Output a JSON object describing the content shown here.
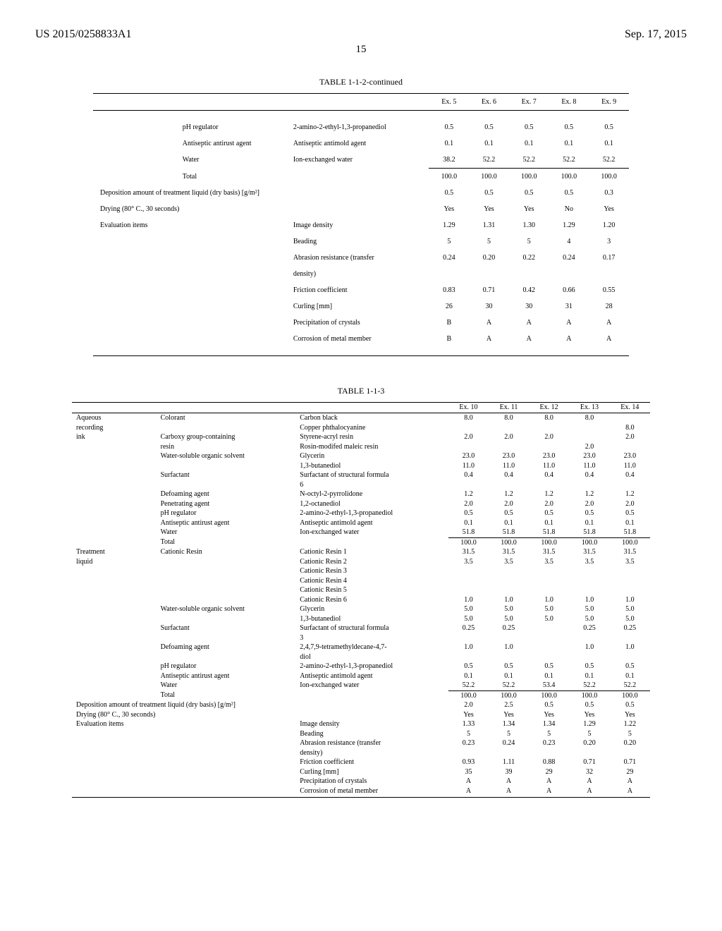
{
  "header": {
    "pub_number": "US 2015/0258833A1",
    "date": "Sep. 17, 2015",
    "page": "15"
  },
  "table1": {
    "title": "TABLE 1-1-2-continued",
    "head": [
      "Ex. 5",
      "Ex. 6",
      "Ex. 7",
      "Ex. 8",
      "Ex. 9"
    ],
    "top_rows": [
      {
        "c1": "",
        "c2": "pH regulator",
        "c3": "2-amino-2-ethyl-1,3-propanediol",
        "v": [
          "0.5",
          "0.5",
          "0.5",
          "0.5",
          "0.5"
        ]
      },
      {
        "c1": "",
        "c2": "Antiseptic antirust agent",
        "c3": "Antiseptic antimold agent",
        "v": [
          "0.1",
          "0.1",
          "0.1",
          "0.1",
          "0.1"
        ]
      },
      {
        "c1": "",
        "c2": "Water",
        "c3": "Ion-exchanged water",
        "v": [
          "38.2",
          "52.2",
          "52.2",
          "52.2",
          "52.2"
        ]
      }
    ],
    "mid_rows": [
      {
        "c1": "",
        "c2": "Total",
        "c3": "",
        "v": [
          "100.0",
          "100.0",
          "100.0",
          "100.0",
          "100.0"
        ]
      },
      {
        "span": "Deposition amount of treatment liquid (dry basis) [g/m²]",
        "v": [
          "0.5",
          "0.5",
          "0.5",
          "0.5",
          "0.3"
        ]
      },
      {
        "span": "Drying (80° C., 30 seconds)",
        "v": [
          "Yes",
          "Yes",
          "Yes",
          "No",
          "Yes"
        ]
      },
      {
        "c1": "Evaluation items",
        "c2": "",
        "c3": "Image density",
        "v": [
          "1.29",
          "1.31",
          "1.30",
          "1.29",
          "1.20"
        ]
      },
      {
        "c1": "",
        "c2": "",
        "c3": "Beading",
        "v": [
          "5",
          "5",
          "5",
          "4",
          "3"
        ]
      },
      {
        "c1": "",
        "c2": "",
        "c3": "Abrasion resistance (transfer",
        "v": [
          "0.24",
          "0.20",
          "0.22",
          "0.24",
          "0.17"
        ]
      },
      {
        "c1": "",
        "c2": "",
        "c3": "density)",
        "v": [
          "",
          "",
          "",
          "",
          ""
        ]
      },
      {
        "c1": "",
        "c2": "",
        "c3": "Friction coefficient",
        "v": [
          "0.83",
          "0.71",
          "0.42",
          "0.66",
          "0.55"
        ]
      },
      {
        "c1": "",
        "c2": "",
        "c3": "Curling [mm]",
        "v": [
          "26",
          "30",
          "30",
          "31",
          "28"
        ]
      },
      {
        "c1": "",
        "c2": "",
        "c3": "Precipitation of crystals",
        "v": [
          "B",
          "A",
          "A",
          "A",
          "A"
        ]
      },
      {
        "c1": "",
        "c2": "",
        "c3": "Corrosion of metal member",
        "v": [
          "B",
          "A",
          "A",
          "A",
          "A"
        ]
      }
    ]
  },
  "table2": {
    "title": "TABLE 1-1-3",
    "head": [
      "Ex. 10",
      "Ex. 11",
      "Ex. 12",
      "Ex. 13",
      "Ex. 14"
    ],
    "rows": [
      {
        "c1": "Aqueous",
        "c2": "Colorant",
        "c3": "Carbon black",
        "v": [
          "8.0",
          "8.0",
          "8.0",
          "8.0",
          ""
        ]
      },
      {
        "c1": "recording",
        "c2": "",
        "c3": "Copper phthalocyanine",
        "v": [
          "",
          "",
          "",
          "",
          "8.0"
        ]
      },
      {
        "c1": "ink",
        "c2": "Carboxy group-containing",
        "c3": "Styrene-acryl resin",
        "v": [
          "2.0",
          "2.0",
          "2.0",
          "",
          "2.0"
        ]
      },
      {
        "c1": "",
        "c2": "resin",
        "c3": "Rosin-modifed maleic resin",
        "v": [
          "",
          "",
          "",
          "2.0",
          ""
        ]
      },
      {
        "c1": "",
        "c2": "Water-soluble organic solvent",
        "c3": "Glycerin",
        "v": [
          "23.0",
          "23.0",
          "23.0",
          "23.0",
          "23.0"
        ]
      },
      {
        "c1": "",
        "c2": "",
        "c3": "1,3-butanediol",
        "v": [
          "11.0",
          "11.0",
          "11.0",
          "11.0",
          "11.0"
        ]
      },
      {
        "c1": "",
        "c2": "Surfactant",
        "c3": "Surfactant of structural formula",
        "v": [
          "0.4",
          "0.4",
          "0.4",
          "0.4",
          "0.4"
        ]
      },
      {
        "c1": "",
        "c2": "",
        "c3": "6",
        "v": [
          "",
          "",
          "",
          "",
          ""
        ]
      },
      {
        "c1": "",
        "c2": "Defoaming agent",
        "c3": "N-octyl-2-pyrrolidone",
        "v": [
          "1.2",
          "1.2",
          "1.2",
          "1.2",
          "1.2"
        ]
      },
      {
        "c1": "",
        "c2": "Penetrating agent",
        "c3": "1,2-octanediol",
        "v": [
          "2.0",
          "2.0",
          "2.0",
          "2.0",
          "2.0"
        ]
      },
      {
        "c1": "",
        "c2": "pH regulator",
        "c3": "2-amino-2-ethyl-1,3-propanediol",
        "v": [
          "0.5",
          "0.5",
          "0.5",
          "0.5",
          "0.5"
        ]
      },
      {
        "c1": "",
        "c2": "Antiseptic antirust agent",
        "c3": "Antiseptic antimold agent",
        "v": [
          "0.1",
          "0.1",
          "0.1",
          "0.1",
          "0.1"
        ]
      },
      {
        "c1": "",
        "c2": "Water",
        "c3": "Ion-exchanged water",
        "v": [
          "51.8",
          "51.8",
          "51.8",
          "51.8",
          "51.8"
        ]
      }
    ],
    "rows2": [
      {
        "c1": "",
        "c2": "Total",
        "c3": "",
        "v": [
          "100.0",
          "100.0",
          "100.0",
          "100.0",
          "100.0"
        ]
      },
      {
        "c1": "Treatment",
        "c2": "Cationic Resin",
        "c3": "Cationic Resin 1",
        "v": [
          "31.5",
          "31.5",
          "31.5",
          "31.5",
          "31.5"
        ]
      },
      {
        "c1": "liquid",
        "c2": "",
        "c3": "Cationic Resin 2",
        "v": [
          "3.5",
          "3.5",
          "3.5",
          "3.5",
          "3.5"
        ]
      },
      {
        "c1": "",
        "c2": "",
        "c3": "Cationic Resin 3",
        "v": [
          "",
          "",
          "",
          "",
          ""
        ]
      },
      {
        "c1": "",
        "c2": "",
        "c3": "Cationic Resin 4",
        "v": [
          "",
          "",
          "",
          "",
          ""
        ]
      },
      {
        "c1": "",
        "c2": "",
        "c3": "Cationic Resin 5",
        "v": [
          "",
          "",
          "",
          "",
          ""
        ]
      },
      {
        "c1": "",
        "c2": "",
        "c3": "Cationic Resin 6",
        "v": [
          "1.0",
          "1.0",
          "1.0",
          "1.0",
          "1.0"
        ]
      },
      {
        "c1": "",
        "c2": "Water-soluble organic solvent",
        "c3": "Glycerin",
        "v": [
          "5.0",
          "5.0",
          "5.0",
          "5.0",
          "5.0"
        ]
      },
      {
        "c1": "",
        "c2": "",
        "c3": "1,3-butanediol",
        "v": [
          "5.0",
          "5.0",
          "5.0",
          "5.0",
          "5.0"
        ]
      },
      {
        "c1": "",
        "c2": "Surfactant",
        "c3": "Surfactant of structural formula",
        "v": [
          "0.25",
          "0.25",
          "",
          "0.25",
          "0.25"
        ]
      },
      {
        "c1": "",
        "c2": "",
        "c3": "3",
        "v": [
          "",
          "",
          "",
          "",
          ""
        ]
      },
      {
        "c1": "",
        "c2": "Defoaming agent",
        "c3": "2,4,7,9-tetramethyldecane-4,7-",
        "v": [
          "1.0",
          "1.0",
          "",
          "1.0",
          "1.0"
        ]
      },
      {
        "c1": "",
        "c2": "",
        "c3": "diol",
        "v": [
          "",
          "",
          "",
          "",
          ""
        ]
      },
      {
        "c1": "",
        "c2": "pH regulator",
        "c3": "2-amino-2-ethyl-1,3-propanediol",
        "v": [
          "0.5",
          "0.5",
          "0.5",
          "0.5",
          "0.5"
        ]
      },
      {
        "c1": "",
        "c2": "Antiseptic antirust agent",
        "c3": "Antiseptic antimold agent",
        "v": [
          "0.1",
          "0.1",
          "0.1",
          "0.1",
          "0.1"
        ]
      },
      {
        "c1": "",
        "c2": "Water",
        "c3": "Ion-exchanged water",
        "v": [
          "52.2",
          "52.2",
          "53.4",
          "52.2",
          "52.2"
        ]
      }
    ],
    "rows3": [
      {
        "c1": "",
        "c2": "Total",
        "c3": "",
        "v": [
          "100.0",
          "100.0",
          "100.0",
          "100.0",
          "100.0"
        ]
      },
      {
        "span": "Deposition amount of treatment liquid (dry basis) [g/m²]",
        "v": [
          "2.0",
          "2.5",
          "0.5",
          "0.5",
          "0.5"
        ]
      },
      {
        "span": "Drying (80° C., 30 seconds)",
        "v": [
          "Yes",
          "Yes",
          "Yes",
          "Yes",
          "Yes"
        ]
      },
      {
        "c1": "Evaluation items",
        "c2": "",
        "c3": "Image density",
        "v": [
          "1.33",
          "1.34",
          "1.34",
          "1.29",
          "1.22"
        ]
      },
      {
        "c1": "",
        "c2": "",
        "c3": "Beading",
        "v": [
          "5",
          "5",
          "5",
          "5",
          "5"
        ]
      },
      {
        "c1": "",
        "c2": "",
        "c3": "Abrasion resistance (transfer",
        "v": [
          "0.23",
          "0.24",
          "0.23",
          "0.20",
          "0.20"
        ]
      },
      {
        "c1": "",
        "c2": "",
        "c3": "density)",
        "v": [
          "",
          "",
          "",
          "",
          ""
        ]
      },
      {
        "c1": "",
        "c2": "",
        "c3": "Friction coefficient",
        "v": [
          "0.93",
          "1.11",
          "0.88",
          "0.71",
          "0.71"
        ]
      },
      {
        "c1": "",
        "c2": "",
        "c3": "Curling [mm]",
        "v": [
          "35",
          "39",
          "29",
          "32",
          "29"
        ]
      },
      {
        "c1": "",
        "c2": "",
        "c3": "Precipitation of crystals",
        "v": [
          "A",
          "A",
          "A",
          "A",
          "A"
        ]
      },
      {
        "c1": "",
        "c2": "",
        "c3": "Corrosion of metal member",
        "v": [
          "A",
          "A",
          "A",
          "A",
          "A"
        ]
      }
    ]
  }
}
